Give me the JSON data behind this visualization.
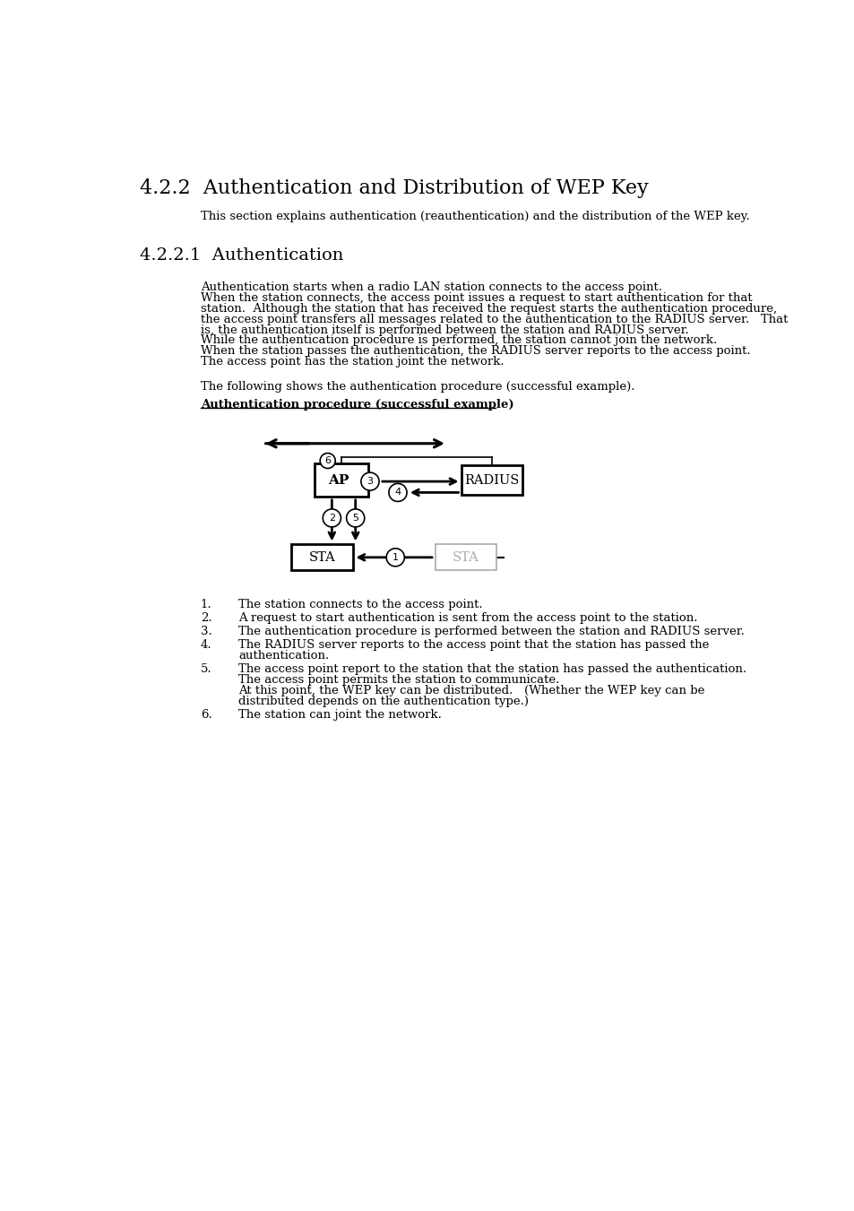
{
  "title1": "4.2.2  Authentication and Distribution of WEP Key",
  "subtitle1": "This section explains authentication (reauthentication) and the distribution of the WEP key.",
  "title2": "4.2.2.1  Authentication",
  "para1_lines": [
    "Authentication starts when a radio LAN station connects to the access point.",
    "When the station connects, the access point issues a request to start authentication for that",
    "station.  Although the station that has received the request starts the authentication procedure,",
    "the access point transfers all messages related to the authentication to the RADIUS server.   That",
    "is, the authentication itself is performed between the station and RADIUS server.",
    "While the authentication procedure is performed, the station cannot join the network.",
    "When the station passes the authentication, the RADIUS server reports to the access point.",
    "The access point has the station joint the network."
  ],
  "para2": "The following shows the authentication procedure (successful example).",
  "diagram_title": "Authentication procedure (successful example)",
  "list_items": [
    [
      "1.",
      "The station connects to the access point."
    ],
    [
      "2.",
      "A request to start authentication is sent from the access point to the station."
    ],
    [
      "3.",
      "The authentication procedure is performed between the station and RADIUS server."
    ],
    [
      "4.",
      "The RADIUS server reports to the access point that the station has passed the\nauthentication."
    ],
    [
      "5.",
      "The access point report to the station that the station has passed the authentication.\nThe access point permits the station to communicate.\nAt this point, the WEP key can be distributed.   (Whether the WEP key can be\ndistributed depends on the authentication type.)"
    ],
    [
      "6.",
      "The station can joint the network."
    ]
  ],
  "bg_color": "#ffffff",
  "text_color": "#000000"
}
